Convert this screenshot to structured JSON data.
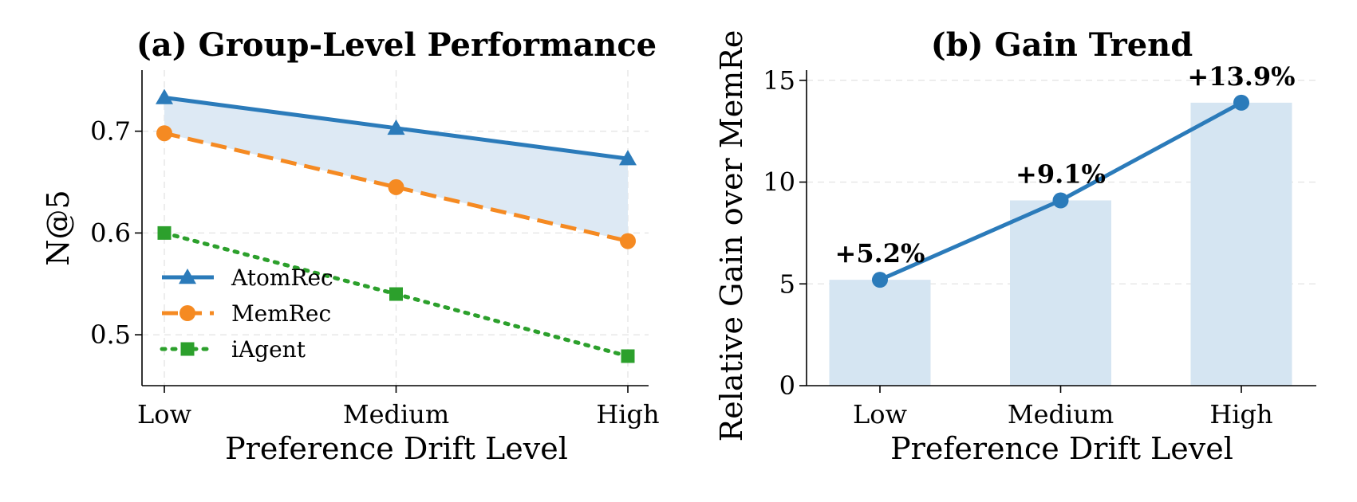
{
  "chart_data": [
    {
      "type": "line",
      "title": "(a) Group-Level Performance",
      "xlabel": "Preference Drift Level",
      "ylabel": "N@5",
      "categories": [
        "Low",
        "Medium",
        "High"
      ],
      "ylim": [
        0.45,
        0.76
      ],
      "yticks": [
        "0.5",
        "0.6",
        "0.7"
      ],
      "ytick_values": [
        0.5,
        0.6,
        0.7
      ],
      "grid": true,
      "legend_position": "lower-left",
      "shaded_between": [
        "AtomRec",
        "MemRec"
      ],
      "series": [
        {
          "name": "AtomRec",
          "values": [
            0.733,
            0.703,
            0.673
          ],
          "color": "#2b7bba",
          "marker": "triangle",
          "line": "solid"
        },
        {
          "name": "MemRec",
          "values": [
            0.698,
            0.645,
            0.592
          ],
          "color": "#f58a22",
          "marker": "circle",
          "line": "dashed"
        },
        {
          "name": "iAgent",
          "values": [
            0.6,
            0.54,
            0.479
          ],
          "color": "#2ca02c",
          "marker": "square",
          "line": "dotted"
        }
      ]
    },
    {
      "type": "bar",
      "title": "(b) Gain Trend",
      "xlabel": "Preference Drift Level",
      "ylabel": "Relative Gain over MemRe",
      "categories": [
        "Low",
        "Medium",
        "High"
      ],
      "values": [
        5.2,
        9.1,
        13.9
      ],
      "data_labels": [
        "+5.2%",
        "+9.1%",
        "+13.9%"
      ],
      "ylim": [
        0,
        15.5
      ],
      "yticks": [
        "0",
        "5",
        "10",
        "15"
      ],
      "ytick_values": [
        0,
        5,
        10,
        15
      ],
      "grid": true,
      "bar_color": "#d5e5f2",
      "line_color": "#2b7bba"
    }
  ]
}
